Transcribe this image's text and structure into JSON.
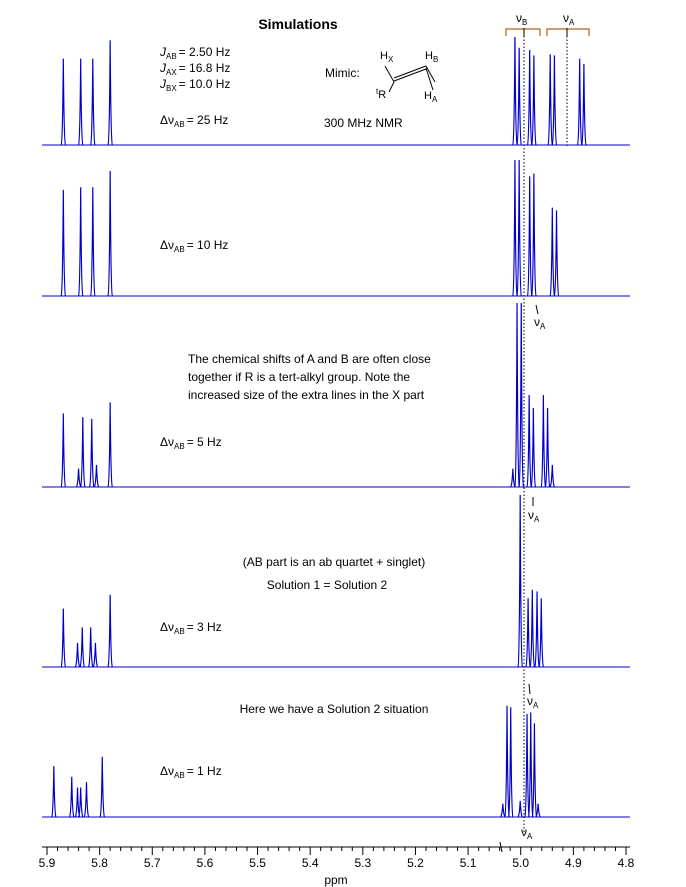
{
  "chart_data": {
    "type": "line",
    "title": "Simulations",
    "xlabel": "ppm",
    "xlim": [
      5.9,
      4.8
    ],
    "x_ticks": [
      "5.9",
      "5.8",
      "5.7",
      "5.6",
      "5.5",
      "5.4",
      "5.3",
      "5.2",
      "5.1",
      "5.0",
      "4.9",
      "4.8"
    ],
    "grid": false,
    "line_color": "#0000cc",
    "params": {
      "jab": "= 2.50 Hz",
      "jax": "= 16.8 Hz",
      "jbx": "= 10.0 Hz",
      "mimic": "Mimic:",
      "hx": "X",
      "hb": "B",
      "ha": "A",
      "r": "R",
      "r_prefix": "t",
      "nmr": "300 MHz NMR"
    },
    "nu_labels": {
      "nu_b": "B",
      "nu_a": "A"
    },
    "series": [
      {
        "dnu": "= 25 Hz",
        "peaks": [
          {
            "x": 5.869,
            "h": 0.8
          },
          {
            "x": 5.836,
            "h": 0.8
          },
          {
            "x": 5.813,
            "h": 0.8
          },
          {
            "x": 5.78,
            "h": 0.97
          },
          {
            "x": 5.011,
            "h": 1.0
          },
          {
            "x": 5.003,
            "h": 0.9
          },
          {
            "x": 4.983,
            "h": 0.88
          },
          {
            "x": 4.975,
            "h": 0.83
          },
          {
            "x": 4.944,
            "h": 0.84
          },
          {
            "x": 4.936,
            "h": 0.83
          },
          {
            "x": 4.888,
            "h": 0.8
          },
          {
            "x": 4.88,
            "h": 0.75
          }
        ]
      },
      {
        "dnu": "= 10 Hz",
        "peaks": [
          {
            "x": 5.869,
            "h": 0.78
          },
          {
            "x": 5.836,
            "h": 0.8
          },
          {
            "x": 5.813,
            "h": 0.8
          },
          {
            "x": 5.78,
            "h": 0.92
          },
          {
            "x": 5.011,
            "h": 1.0
          },
          {
            "x": 5.003,
            "h": 1.0
          },
          {
            "x": 4.983,
            "h": 0.88
          },
          {
            "x": 4.975,
            "h": 0.9
          },
          {
            "x": 4.94,
            "h": 0.65
          },
          {
            "x": 4.932,
            "h": 0.63
          }
        ]
      },
      {
        "dnu": "= 5 Hz",
        "callout": "A",
        "notes": [
          "The chemical shifts of A and B are often close",
          "together if R is a tert-alkyl group.  Note the",
          "increased size of the extra lines in the X part"
        ],
        "peaks": [
          {
            "x": 5.869,
            "h": 0.4
          },
          {
            "x": 5.84,
            "h": 0.1
          },
          {
            "x": 5.832,
            "h": 0.38
          },
          {
            "x": 5.815,
            "h": 0.37
          },
          {
            "x": 5.806,
            "h": 0.12
          },
          {
            "x": 5.78,
            "h": 0.46
          },
          {
            "x": 5.015,
            "h": 0.1
          },
          {
            "x": 5.007,
            "h": 1.0
          },
          {
            "x": 4.999,
            "h": 1.0
          },
          {
            "x": 4.984,
            "h": 0.5
          },
          {
            "x": 4.976,
            "h": 0.43
          },
          {
            "x": 4.957,
            "h": 0.5
          },
          {
            "x": 4.949,
            "h": 0.43
          },
          {
            "x": 4.94,
            "h": 0.12
          }
        ]
      },
      {
        "dnu": "= 3 Hz",
        "callout": "A",
        "notes": [
          "(AB part is an ab quartet + singlet)",
          "Solution 1 = Solution 2"
        ],
        "peaks": [
          {
            "x": 5.869,
            "h": 0.34
          },
          {
            "x": 5.842,
            "h": 0.14
          },
          {
            "x": 5.833,
            "h": 0.23
          },
          {
            "x": 5.817,
            "h": 0.23
          },
          {
            "x": 5.808,
            "h": 0.14
          },
          {
            "x": 5.78,
            "h": 0.42
          },
          {
            "x": 5.001,
            "h": 1.0
          },
          {
            "x": 4.986,
            "h": 0.4
          },
          {
            "x": 4.978,
            "h": 0.45
          },
          {
            "x": 4.969,
            "h": 0.44
          },
          {
            "x": 4.961,
            "h": 0.4
          }
        ]
      },
      {
        "dnu": "= 1 Hz",
        "callout": "A",
        "notes": [
          "Here we have a Solution 2 situation"
        ],
        "peaks": [
          {
            "x": 5.887,
            "h": 0.38
          },
          {
            "x": 5.853,
            "h": 0.3
          },
          {
            "x": 5.842,
            "h": 0.22
          },
          {
            "x": 5.836,
            "h": 0.22
          },
          {
            "x": 5.825,
            "h": 0.26
          },
          {
            "x": 5.795,
            "h": 0.45
          },
          {
            "x": 5.034,
            "h": 0.1
          },
          {
            "x": 5.026,
            "h": 0.83
          },
          {
            "x": 5.019,
            "h": 0.82
          },
          {
            "x": 5.001,
            "h": 0.12
          },
          {
            "x": 4.988,
            "h": 0.77
          },
          {
            "x": 4.981,
            "h": 0.78
          },
          {
            "x": 4.974,
            "h": 0.7
          },
          {
            "x": 4.967,
            "h": 0.1
          }
        ]
      }
    ],
    "bottom_callout": "A"
  }
}
